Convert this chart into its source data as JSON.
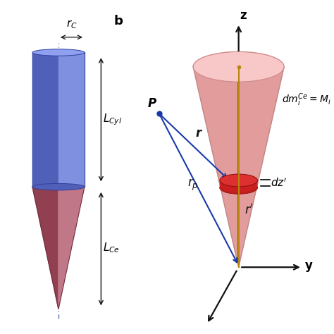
{
  "background_color": "#ffffff",
  "cyl_left_color": "#5060b8",
  "cyl_right_color": "#8090e0",
  "cyl_edge_color": "#3040a0",
  "cyl_top_color": "#90a0f0",
  "cone_left_color": "#904050",
  "cone_right_color": "#c07888",
  "cone_edge_color": "#703040",
  "cone_surf_color": "#f0b0b0",
  "cone_surf_dark": "#e09898",
  "cone_top_ell_color": "#f8c8c8",
  "cone_top_ell_edge": "#cc8888",
  "disk_color": "#cc2020",
  "disk_edge_color": "#881010",
  "disk_top_color": "#dd3030",
  "arrow_color": "#1a3aaa",
  "dot_color": "#1a3aaa",
  "axis_color": "#111111",
  "z_line_color": "#b8860b",
  "dash_color": "#4466aa",
  "dim_arrow_color": "#111111"
}
